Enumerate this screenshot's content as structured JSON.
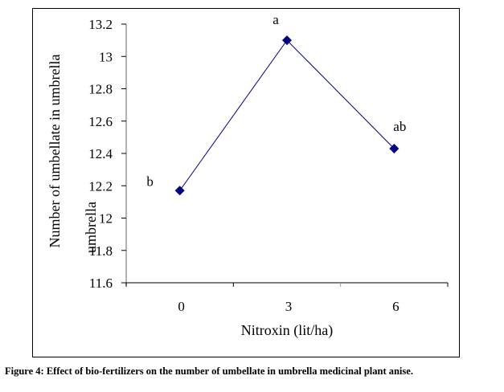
{
  "chart_data": {
    "type": "line",
    "title": "",
    "xlabel": "Nitroxin (lit/ha)",
    "ylabel": "Number of umbellate in umbrella",
    "ylabel_overlap_fragment": "umbrella",
    "categories": [
      "0",
      "3",
      "6"
    ],
    "series": [
      {
        "name": "Number of umbellate",
        "values": [
          12.17,
          13.1,
          12.43
        ],
        "color": "#000080"
      }
    ],
    "annotations": [
      "b",
      "a",
      "ab"
    ],
    "ylim": [
      11.6,
      13.2
    ],
    "yticks": [
      11.6,
      11.8,
      12,
      12.2,
      12.4,
      12.6,
      12.8,
      13,
      13.2
    ],
    "ytick_labels": [
      "11.6",
      "11.8",
      "12",
      "12.2",
      "12.4",
      "12.6",
      "12.8",
      "13",
      "13.2"
    ],
    "grid": false,
    "legend": "none"
  },
  "caption": "Figure 4: Effect of bio-fertilizers on the number of umbellate in umbrella medicinal plant anise."
}
